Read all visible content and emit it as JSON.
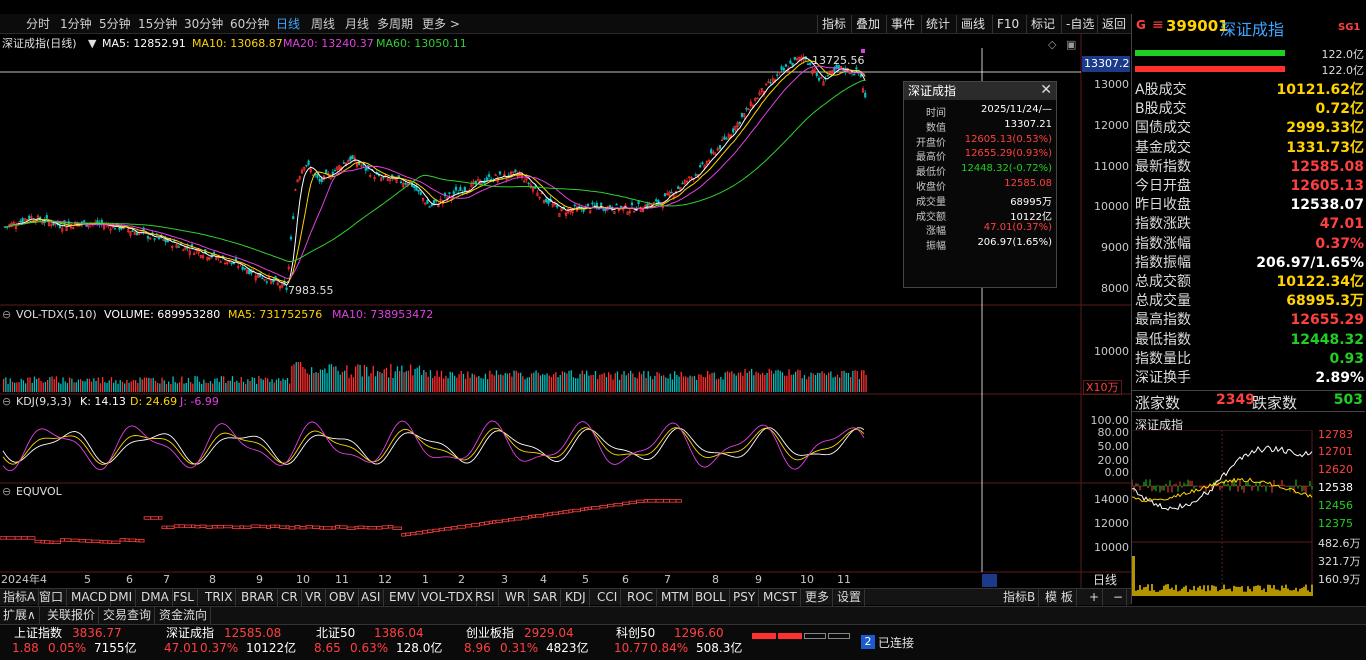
{
  "period_bar": {
    "items": [
      "分时",
      "1分钟",
      "5分钟",
      "15分钟",
      "30分钟",
      "60分钟",
      "日线",
      "周线",
      "月线",
      "多周期",
      "更多 >"
    ],
    "active": "日线"
  },
  "tool_bar": [
    "指标",
    "叠加",
    "事件",
    "统计",
    "画线",
    "F10",
    "标记",
    "-自选",
    "返回"
  ],
  "main": {
    "name": "深证成指(日线)",
    "ma5": "MA5: 12852.91",
    "ma10": "MA10: 13068.87",
    "ma20": "MA20: 13240.37",
    "ma60": "MA60: 13050.11",
    "crosshair_price": "13307.2",
    "high_label": "13725.56",
    "low_label": "7983.55",
    "y_ticks": [
      "13000",
      "12000",
      "11000",
      "10000",
      "9000",
      "8000"
    ]
  },
  "volume": {
    "label": "VOL-TDX(5,10)",
    "volume": "VOLUME: 689953280",
    "ma5": "MA5: 731752576",
    "ma10": "MA10: 738953472",
    "y_tick": "10000",
    "unit": "X10万"
  },
  "kdj": {
    "label": "KDJ(9,3,3)",
    "k": "K: 14.13",
    "d": "D: 24.69",
    "j": "J: -6.99",
    "y_ticks": [
      "100.00",
      "80.00",
      "50.00",
      "20.00",
      "0.00"
    ]
  },
  "equvol": {
    "label": "EQUVOL",
    "y_ticks": [
      "14000",
      "12000",
      "10000"
    ]
  },
  "x_axis": [
    "2024年4",
    "5",
    "6",
    "7",
    "8",
    "9",
    "10",
    "11",
    "12",
    "1",
    "2",
    "3",
    "4",
    "5",
    "6",
    "7",
    "8",
    "9",
    "10",
    "11"
  ],
  "x_axis_mode": "日线",
  "tooltip": {
    "title": "深证成指",
    "rows": [
      {
        "k": "时间",
        "v": "2025/11/24/—",
        "c": "white"
      },
      {
        "k": "数值",
        "v": "13307.21",
        "c": "white"
      },
      {
        "k": "开盘价",
        "v": "12605.13(0.53%)",
        "c": "red"
      },
      {
        "k": "最高价",
        "v": "12655.29(0.93%)",
        "c": "red"
      },
      {
        "k": "最低价",
        "v": "12448.32(-0.72%)",
        "c": "green"
      },
      {
        "k": "收盘价",
        "v": "12585.08",
        "c": "red"
      },
      {
        "k": "成交量",
        "v": "68995万",
        "c": "white"
      },
      {
        "k": "成交额",
        "v": "10122亿",
        "c": "white"
      },
      {
        "k": "涨幅",
        "v": "47.01(0.37%)",
        "c": "red"
      },
      {
        "k": "振幅",
        "v": "206.97(1.65%)",
        "c": "white"
      }
    ]
  },
  "right_panel": {
    "badge": "G",
    "menu": "≡",
    "code": "399001",
    "name": "深证成指",
    "tag": "SG1",
    "bar_val_1": "122.0亿",
    "bar_val_2": "122.0亿",
    "bar_fill": {
      "red": 1.0,
      "green": 1.0
    },
    "rows": [
      {
        "k": "A股成交",
        "v": "10121.62亿",
        "c": "yellow"
      },
      {
        "k": "B股成交",
        "v": "0.72亿",
        "c": "yellow"
      },
      {
        "k": "国债成交",
        "v": "2999.33亿",
        "c": "yellow"
      },
      {
        "k": "基金成交",
        "v": "1331.73亿",
        "c": "yellow"
      },
      {
        "k": "最新指数",
        "v": "12585.08",
        "c": "red"
      },
      {
        "k": "今日开盘",
        "v": "12605.13",
        "c": "red"
      },
      {
        "k": "昨日收盘",
        "v": "12538.07",
        "c": "white"
      },
      {
        "k": "指数涨跌",
        "v": "47.01",
        "c": "red"
      },
      {
        "k": "指数涨幅",
        "v": "0.37%",
        "c": "red"
      },
      {
        "k": "指数振幅",
        "v": "206.97/1.65%",
        "c": "white"
      },
      {
        "k": "总成交额",
        "v": "10122.34亿",
        "c": "yellow"
      },
      {
        "k": "总成交量",
        "v": "68995.3万",
        "c": "yellow"
      },
      {
        "k": "最高指数",
        "v": "12655.29",
        "c": "red"
      },
      {
        "k": "最低指数",
        "v": "12448.32",
        "c": "green"
      },
      {
        "k": "指数量比",
        "v": "0.93",
        "c": "green"
      },
      {
        "k": "深证换手",
        "v": "2.89%",
        "c": "white"
      }
    ],
    "rise_label": "涨家数",
    "rise_value": "2349",
    "fall_label": "跌家数",
    "fall_value": "503",
    "mini_title": "深证成指",
    "mini_ticks": [
      "12783",
      "12701",
      "12620",
      "12538",
      "12456",
      "12375",
      "482.6万",
      "321.7万",
      "160.9万"
    ]
  },
  "indicator_tabs": [
    "指标A",
    "窗口",
    "MACD",
    "DMI",
    "DMA",
    "FSL",
    "TRIX",
    "BRAR",
    "CR",
    "VR",
    "OBV",
    "ASI",
    "EMV",
    "VOL-TDX",
    "RSI",
    "WR",
    "SAR",
    "KDJ",
    "CCI",
    "ROC",
    "MTM",
    "BOLL",
    "PSY",
    "MCST",
    "更多",
    "设置"
  ],
  "indicator_tabs_right": [
    "指标B",
    "模 板",
    "+",
    "−"
  ],
  "secondary_tabs": [
    "扩展∧",
    "关联报价",
    "交易查询",
    "资金流向"
  ],
  "status_bar": [
    {
      "name": "上证指数",
      "price": "3836.77",
      "chg": "1.88",
      "pct": "0.05%",
      "amt": "7155亿",
      "c": "red"
    },
    {
      "name": "深证成指",
      "price": "12585.08",
      "chg": "47.01",
      "pct": "0.37%",
      "amt": "10122亿",
      "c": "red"
    },
    {
      "name": "北证50",
      "price": "1386.04",
      "chg": "8.65",
      "pct": "0.63%",
      "amt": "128.0亿",
      "c": "red"
    },
    {
      "name": "创业板指",
      "price": "2929.04",
      "chg": "8.96",
      "pct": "0.31%",
      "amt": "4823亿",
      "c": "red"
    },
    {
      "name": "科创50",
      "price": "1296.60",
      "chg": "10.77",
      "pct": "0.84%",
      "amt": "508.3亿",
      "c": "red"
    }
  ],
  "connection": {
    "count": "2",
    "text": "已连接"
  },
  "colors": {
    "up": "#ff3030",
    "down": "#00c0c0",
    "ma5": "#ffffff",
    "ma10": "#ffd400",
    "ma20": "#e040e0",
    "ma60": "#30d030",
    "axis": "#c8c8c8"
  }
}
